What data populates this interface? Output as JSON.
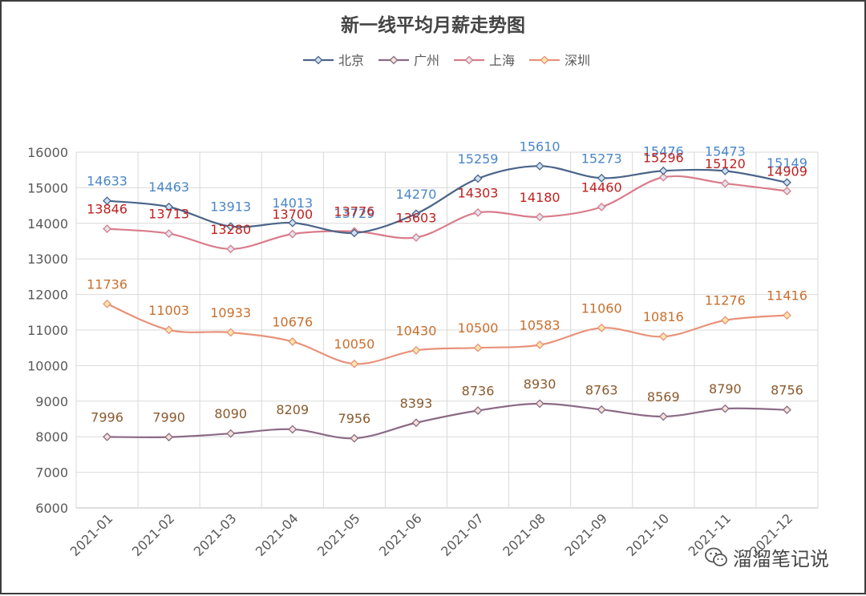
{
  "chart_data": {
    "type": "line",
    "title": "新一线平均月薪走势图",
    "categories": [
      "2021-01",
      "2021-02",
      "2021-03",
      "2021-04",
      "2021-05",
      "2021-06",
      "2021-07",
      "2021-08",
      "2021-09",
      "2021-10",
      "2021-11",
      "2021-12"
    ],
    "ylim": [
      6000,
      16000
    ],
    "yticks": [
      6000,
      7000,
      8000,
      9000,
      10000,
      11000,
      12000,
      13000,
      14000,
      15000,
      16000
    ],
    "grid": true,
    "legend_position": "top-center",
    "series": [
      {
        "name": "北京",
        "color": "#4a6488",
        "marker_fill": "#cfe0f5",
        "label_color": "#4a86c8",
        "values": [
          14633,
          14463,
          13913,
          14013,
          13729,
          14270,
          15259,
          15610,
          15273,
          15476,
          15473,
          15149
        ]
      },
      {
        "name": "广州",
        "color": "#8b6a86",
        "marker_fill": "#f3e3d5",
        "label_color": "#8a5a2e",
        "values": [
          7996,
          7990,
          8090,
          8209,
          7956,
          8393,
          8736,
          8930,
          8763,
          8569,
          8790,
          8756
        ]
      },
      {
        "name": "上海",
        "color": "#d97c8a",
        "marker_fill": "#dde6f0",
        "label_color": "#c02020",
        "values": [
          13846,
          13713,
          13280,
          13700,
          13776,
          13603,
          14303,
          14180,
          14460,
          15296,
          15120,
          14909
        ]
      },
      {
        "name": "深圳",
        "color": "#e8927a",
        "marker_fill": "#fde7a8",
        "label_color": "#c86f2e",
        "values": [
          11736,
          11003,
          10933,
          10676,
          10050,
          10430,
          10500,
          10583,
          11060,
          10816,
          11276,
          11416
        ]
      }
    ]
  },
  "watermark": {
    "text": "溜溜笔记说",
    "icon": "wechat-icon"
  }
}
